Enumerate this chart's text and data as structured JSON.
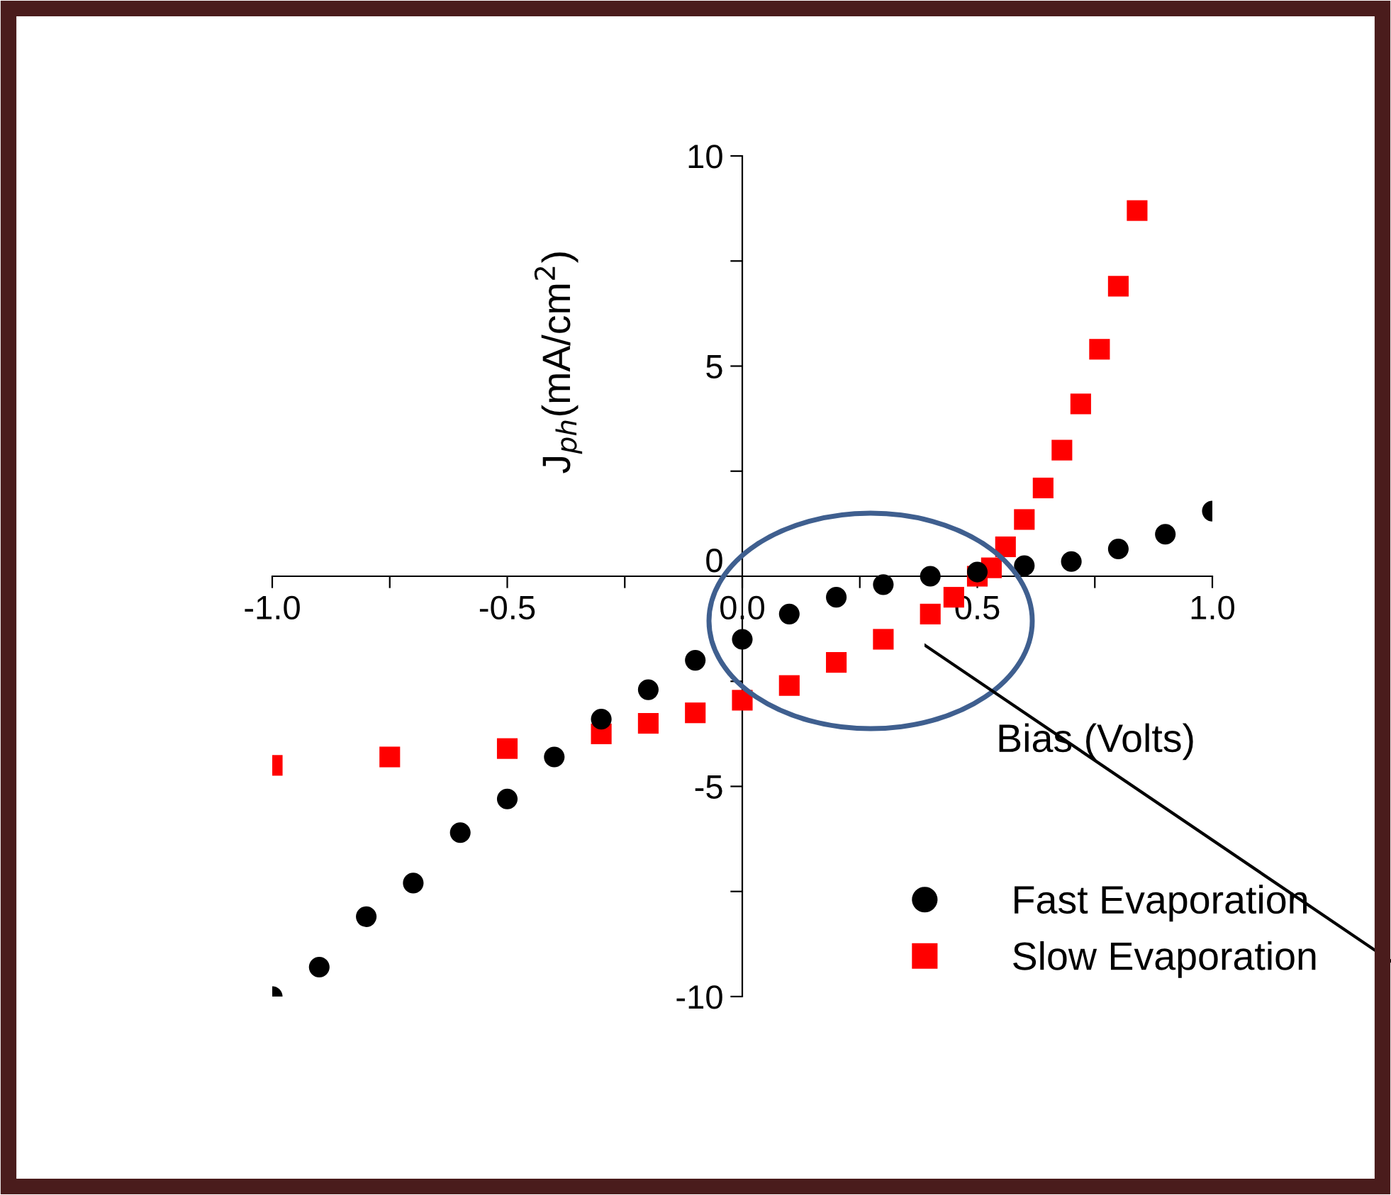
{
  "chart_data": {
    "type": "scatter",
    "xlabel": "Bias (Volts)",
    "ylabel": "J$_{ph}$(mA/cm$^{2}$)",
    "xlim": [
      -1.0,
      1.0
    ],
    "ylim": [
      -10,
      10
    ],
    "xticks": [
      {
        "value": -1.0,
        "label": "-1.0"
      },
      {
        "value": -0.75,
        "label": null
      },
      {
        "value": -0.5,
        "label": "-0.5"
      },
      {
        "value": -0.25,
        "label": null
      },
      {
        "value": 0.0,
        "label": "0.0"
      },
      {
        "value": 0.25,
        "label": null
      },
      {
        "value": 0.5,
        "label": "0.5"
      },
      {
        "value": 0.75,
        "label": null
      },
      {
        "value": 1.0,
        "label": "1.0"
      }
    ],
    "yticks": [
      {
        "value": -10,
        "label": "-10"
      },
      {
        "value": -7.5,
        "label": null
      },
      {
        "value": -5,
        "label": "-5"
      },
      {
        "value": -2.5,
        "label": null
      },
      {
        "value": 0,
        "label": "0"
      },
      {
        "value": 2.5,
        "label": null
      },
      {
        "value": 5,
        "label": "5"
      },
      {
        "value": 7.5,
        "label": null
      },
      {
        "value": 10,
        "label": "10"
      }
    ],
    "grid": false,
    "legend": "bottom right",
    "series": [
      {
        "name": "Fast Evaporation",
        "color": "#000000",
        "marker": "circle",
        "x": [
          -1.0,
          -0.9,
          -0.8,
          -0.7,
          -0.6,
          -0.5,
          -0.4,
          -0.3,
          -0.2,
          -0.1,
          0.0,
          0.1,
          0.2,
          0.3,
          0.4,
          0.5,
          0.6,
          0.7,
          0.8,
          0.9,
          1.0
        ],
        "values": [
          -10.0,
          -9.3,
          -8.1,
          -7.3,
          -6.1,
          -5.3,
          -4.3,
          -3.4,
          -2.7,
          -2.0,
          -1.5,
          -0.9,
          -0.5,
          -0.2,
          0.0,
          0.1,
          0.25,
          0.35,
          0.65,
          1.0,
          1.55
        ]
      },
      {
        "name": "Slow Evaporation",
        "color": "#ff0000",
        "marker": "square",
        "x": [
          -1.0,
          -0.75,
          -0.5,
          -0.3,
          -0.2,
          -0.1,
          0.0,
          0.1,
          0.2,
          0.3,
          0.4,
          0.45,
          0.5,
          0.53,
          0.56,
          0.6,
          0.64,
          0.68,
          0.72,
          0.76,
          0.8,
          0.84
        ],
        "values": [
          -4.5,
          -4.3,
          -4.1,
          -3.75,
          -3.5,
          -3.25,
          -2.95,
          -2.6,
          -2.05,
          -1.5,
          -0.9,
          -0.5,
          0.0,
          0.2,
          0.7,
          1.35,
          2.1,
          3.0,
          4.1,
          5.4,
          6.9,
          8.7
        ]
      }
    ]
  }
}
